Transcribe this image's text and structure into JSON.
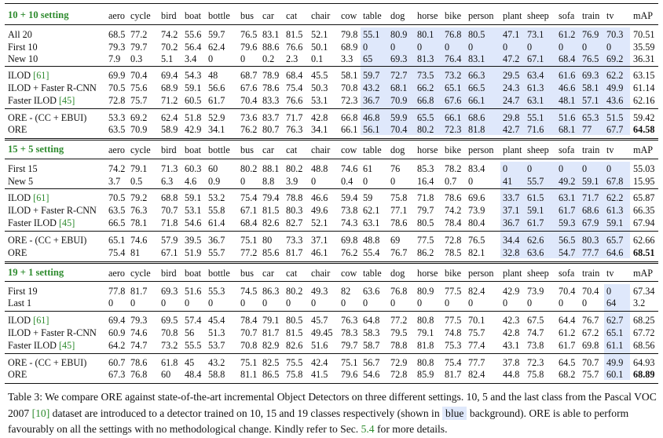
{
  "columns": [
    "aero",
    "cycle",
    "bird",
    "boat",
    "bottle",
    "bus",
    "car",
    "cat",
    "chair",
    "cow",
    "table",
    "dog",
    "horse",
    "bike",
    "person",
    "plant",
    "sheep",
    "sofa",
    "train",
    "tv",
    "mAP"
  ],
  "highlight_color": "#dfe8fb",
  "title_color": "#2e8b2e",
  "sections": [
    {
      "title": "10 + 10 setting",
      "highlight": "table-tv",
      "groups": [
        [
          {
            "label": "All 20",
            "values": [
              "68.5",
              "77.2",
              "74.2",
              "55.6",
              "59.7",
              "76.5",
              "83.1",
              "81.5",
              "52.1",
              "79.8",
              "55.1",
              "80.9",
              "80.1",
              "76.8",
              "80.5",
              "47.1",
              "73.1",
              "61.2",
              "76.9",
              "70.3",
              "70.51"
            ]
          },
          {
            "label": "First 10",
            "values": [
              "79.3",
              "79.7",
              "70.2",
              "56.4",
              "62.4",
              "79.6",
              "88.6",
              "76.6",
              "50.1",
              "68.9",
              "0",
              "0",
              "0",
              "0",
              "0",
              "0",
              "0",
              "0",
              "0",
              "0",
              "35.59"
            ]
          },
          {
            "label": "New 10",
            "values": [
              "7.9",
              "0.3",
              "5.1",
              "3.4",
              "0",
              "0",
              "0.2",
              "2.3",
              "0.1",
              "3.3",
              "65",
              "69.3",
              "81.3",
              "76.4",
              "83.1",
              "47.2",
              "67.1",
              "68.4",
              "76.5",
              "69.2",
              "36.31"
            ]
          }
        ],
        [
          {
            "label": "ILOD",
            "cite": "[61]",
            "values": [
              "69.9",
              "70.4",
              "69.4",
              "54.3",
              "48",
              "68.7",
              "78.9",
              "68.4",
              "45.5",
              "58.1",
              "59.7",
              "72.7",
              "73.5",
              "73.2",
              "66.3",
              "29.5",
              "63.4",
              "61.6",
              "69.3",
              "62.2",
              "63.15"
            ]
          },
          {
            "label": "ILOD + Faster R-CNN",
            "values": [
              "70.5",
              "75.6",
              "68.9",
              "59.1",
              "56.6",
              "67.6",
              "78.6",
              "75.4",
              "50.3",
              "70.8",
              "43.2",
              "68.1",
              "66.2",
              "65.1",
              "66.5",
              "24.3",
              "61.3",
              "46.6",
              "58.1",
              "49.9",
              "61.14"
            ]
          },
          {
            "label": "Faster ILOD",
            "cite": "[45]",
            "values": [
              "72.8",
              "75.7",
              "71.2",
              "60.5",
              "61.7",
              "70.4",
              "83.3",
              "76.6",
              "53.1",
              "72.3",
              "36.7",
              "70.9",
              "66.8",
              "67.6",
              "66.1",
              "24.7",
              "63.1",
              "48.1",
              "57.1",
              "43.6",
              "62.16"
            ]
          }
        ],
        [
          {
            "label": "ORE - (CC + EBUI)",
            "values": [
              "53.3",
              "69.2",
              "62.4",
              "51.8",
              "52.9",
              "73.6",
              "83.7",
              "71.7",
              "42.8",
              "66.8",
              "46.8",
              "59.9",
              "65.5",
              "66.1",
              "68.6",
              "29.8",
              "55.1",
              "51.6",
              "65.3",
              "51.5",
              "59.42"
            ]
          },
          {
            "label": "ORE",
            "values": [
              "63.5",
              "70.9",
              "58.9",
              "42.9",
              "34.1",
              "76.2",
              "80.7",
              "76.3",
              "34.1",
              "66.1",
              "56.1",
              "70.4",
              "80.2",
              "72.3",
              "81.8",
              "42.7",
              "71.6",
              "68.1",
              "77",
              "67.7",
              "64.58"
            ],
            "bold_last": true
          }
        ]
      ]
    },
    {
      "title": "15 + 5 setting",
      "highlight": "plant-tv",
      "groups": [
        [
          {
            "label": "First 15",
            "values": [
              "74.2",
              "79.1",
              "71.3",
              "60.3",
              "60",
              "80.2",
              "88.1",
              "80.2",
              "48.8",
              "74.6",
              "61",
              "76",
              "85.3",
              "78.2",
              "83.4",
              "0",
              "0",
              "0",
              "0",
              "0",
              "55.03"
            ]
          },
          {
            "label": "New 5",
            "values": [
              "3.7",
              "0.5",
              "6.3",
              "4.6",
              "0.9",
              "0",
              "8.8",
              "3.9",
              "0",
              "0.4",
              "0",
              "0",
              "16.4",
              "0.7",
              "0",
              "41",
              "55.7",
              "49.2",
              "59.1",
              "67.8",
              "15.95"
            ]
          }
        ],
        [
          {
            "label": "ILOD",
            "cite": "[61]",
            "values": [
              "70.5",
              "79.2",
              "68.8",
              "59.1",
              "53.2",
              "75.4",
              "79.4",
              "78.8",
              "46.6",
              "59.4",
              "59",
              "75.8",
              "71.8",
              "78.6",
              "69.6",
              "33.7",
              "61.5",
              "63.1",
              "71.7",
              "62.2",
              "65.87"
            ]
          },
          {
            "label": "ILOD + Faster R-CNN",
            "values": [
              "63.5",
              "76.3",
              "70.7",
              "53.1",
              "55.8",
              "67.1",
              "81.5",
              "80.3",
              "49.6",
              "73.8",
              "62.1",
              "77.1",
              "79.7",
              "74.2",
              "73.9",
              "37.1",
              "59.1",
              "61.7",
              "68.6",
              "61.3",
              "66.35"
            ]
          },
          {
            "label": "Faster ILOD",
            "cite": "[45]",
            "values": [
              "66.5",
              "78.1",
              "71.8",
              "54.6",
              "61.4",
              "68.4",
              "82.6",
              "82.7",
              "52.1",
              "74.3",
              "63.1",
              "78.6",
              "80.5",
              "78.4",
              "80.4",
              "36.7",
              "61.7",
              "59.3",
              "67.9",
              "59.1",
              "67.94"
            ]
          }
        ],
        [
          {
            "label": "ORE - (CC + EBUI)",
            "values": [
              "65.1",
              "74.6",
              "57.9",
              "39.5",
              "36.7",
              "75.1",
              "80",
              "73.3",
              "37.1",
              "69.8",
              "48.8",
              "69",
              "77.5",
              "72.8",
              "76.5",
              "34.4",
              "62.6",
              "56.5",
              "80.3",
              "65.7",
              "62.66"
            ]
          },
          {
            "label": "ORE",
            "values": [
              "75.4",
              "81",
              "67.1",
              "51.9",
              "55.7",
              "77.2",
              "85.6",
              "81.7",
              "46.1",
              "76.2",
              "55.4",
              "76.7",
              "86.2",
              "78.5",
              "82.1",
              "32.8",
              "63.6",
              "54.7",
              "77.7",
              "64.6",
              "68.51"
            ],
            "bold_last": true
          }
        ]
      ]
    },
    {
      "title": "19 + 1 setting",
      "highlight": "tv",
      "groups": [
        [
          {
            "label": "First 19",
            "values": [
              "77.8",
              "81.7",
              "69.3",
              "51.6",
              "55.3",
              "74.5",
              "86.3",
              "80.2",
              "49.3",
              "82",
              "63.6",
              "76.8",
              "80.9",
              "77.5",
              "82.4",
              "42.9",
              "73.9",
              "70.4",
              "70.4",
              "0",
              "67.34"
            ]
          },
          {
            "label": "Last 1",
            "values": [
              "0",
              "0",
              "0",
              "0",
              "0",
              "0",
              "0",
              "0",
              "0",
              "0",
              "0",
              "0",
              "0",
              "0",
              "0",
              "0",
              "0",
              "0",
              "0",
              "64",
              "3.2"
            ]
          }
        ],
        [
          {
            "label": "ILOD",
            "cite": "[61]",
            "values": [
              "69.4",
              "79.3",
              "69.5",
              "57.4",
              "45.4",
              "78.4",
              "79.1",
              "80.5",
              "45.7",
              "76.3",
              "64.8",
              "77.2",
              "80.8",
              "77.5",
              "70.1",
              "42.3",
              "67.5",
              "64.4",
              "76.7",
              "62.7",
              "68.25"
            ]
          },
          {
            "label": "ILOD + Faster R-CNN",
            "values": [
              "60.9",
              "74.6",
              "70.8",
              "56",
              "51.3",
              "70.7",
              "81.7",
              "81.5",
              "49.45",
              "78.3",
              "58.3",
              "79.5",
              "79.1",
              "74.8",
              "75.7",
              "42.8",
              "74.7",
              "61.2",
              "67.2",
              "65.1",
              "67.72"
            ]
          },
          {
            "label": "Faster ILOD",
            "cite": "[45]",
            "values": [
              "64.2",
              "74.7",
              "73.2",
              "55.5",
              "53.7",
              "70.8",
              "82.9",
              "82.6",
              "51.6",
              "79.7",
              "58.7",
              "78.8",
              "81.8",
              "75.3",
              "77.4",
              "43.1",
              "73.8",
              "61.7",
              "69.8",
              "61.1",
              "68.56"
            ]
          }
        ],
        [
          {
            "label": "ORE - (CC + EBUI)",
            "values": [
              "60.7",
              "78.6",
              "61.8",
              "45",
              "43.2",
              "75.1",
              "82.5",
              "75.5",
              "42.4",
              "75.1",
              "56.7",
              "72.9",
              "80.8",
              "75.4",
              "77.7",
              "37.8",
              "72.3",
              "64.5",
              "70.7",
              "49.9",
              "64.93"
            ]
          },
          {
            "label": "ORE",
            "values": [
              "67.3",
              "76.8",
              "60",
              "48.4",
              "58.8",
              "81.1",
              "86.5",
              "75.8",
              "41.5",
              "79.6",
              "54.6",
              "72.8",
              "85.9",
              "81.7",
              "82.4",
              "44.8",
              "75.8",
              "68.2",
              "75.7",
              "60.1",
              "68.89"
            ],
            "bold_last": true
          }
        ]
      ]
    }
  ],
  "caption": {
    "p1": "Table 3: We compare ORE against state-of-the-art incremental Object Detectors on three different settings. 10, 5 and the last class from the Pascal VOC 2007 ",
    "cite_voc": "[10]",
    "p2": " dataset are introduced to a detector trained on 10, 15 and 19 classes respectively (shown in ",
    "blue_word": "blue",
    "p3": " background). ORE is able to perform favourably on all the settings with no methodological change. Kindly refer to Sec. ",
    "sec_ref": "5.4",
    "p4": " for more details."
  }
}
